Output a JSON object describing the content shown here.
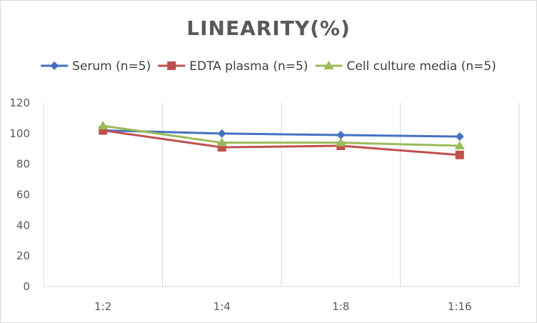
{
  "chart_data": {
    "type": "line",
    "title": "LINEARITY(%)",
    "xlabel": "",
    "ylabel": "",
    "categories": [
      "1:2",
      "1:4",
      "1:8",
      "1:16"
    ],
    "ylim": [
      0,
      120
    ],
    "yticks": [
      0,
      20,
      40,
      60,
      80,
      100,
      120
    ],
    "grid": "vertical-category",
    "legend_position": "top",
    "series": [
      {
        "name": "Serum (n=5)",
        "values": [
          102,
          100,
          99,
          98
        ],
        "color": "#4472C4",
        "marker": "diamond"
      },
      {
        "name": "EDTA plasma (n=5)",
        "values": [
          102,
          91,
          92,
          86
        ],
        "color": "#C0504D",
        "marker": "square"
      },
      {
        "name": "Cell culture media (n=5)",
        "values": [
          105,
          94,
          94,
          92
        ],
        "color": "#9BBB59",
        "marker": "triangle"
      }
    ]
  }
}
